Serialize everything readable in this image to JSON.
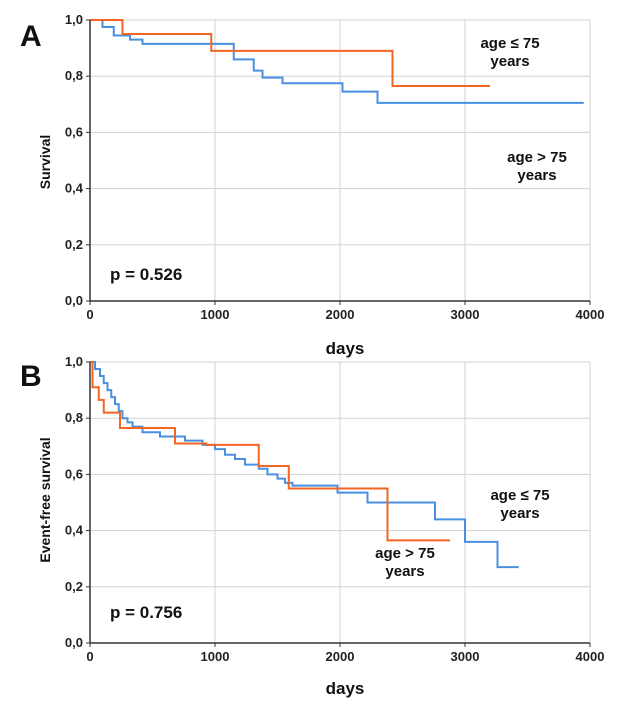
{
  "colors": {
    "series_a": "#4a90e2",
    "series_b": "#f26522",
    "grid": "#d3d3d3",
    "axis": "#333333"
  },
  "chart_data": [
    {
      "type": "line",
      "panel_label": "A",
      "ylabel": "Survival",
      "xlabel": "days",
      "xlim": [
        0,
        4000
      ],
      "ylim": [
        0,
        1.0
      ],
      "x_ticks": [
        0,
        1000,
        2000,
        3000,
        4000
      ],
      "y_ticks": [
        0,
        0.2,
        0.4,
        0.6,
        0.8,
        1.0
      ],
      "x_tick_labels": [
        "0",
        "1000",
        "2000",
        "3000",
        "4000"
      ],
      "y_tick_labels": [
        "0,0",
        "0,2",
        "0,4",
        "0,6",
        "0,8",
        "1,0"
      ],
      "grid": true,
      "pvalue": "p = 0.526",
      "annotations": [
        {
          "line1": "age ≤ 75",
          "line2": "years"
        },
        {
          "line1": "age > 75",
          "line2": "years"
        }
      ],
      "series": [
        {
          "color": "series_a",
          "steps": [
            [
              0,
              1.0
            ],
            [
              100,
              0.975
            ],
            [
              190,
              0.945
            ],
            [
              320,
              0.93
            ],
            [
              420,
              0.915
            ],
            [
              1150,
              0.86
            ],
            [
              1310,
              0.82
            ],
            [
              1380,
              0.795
            ],
            [
              1540,
              0.775
            ],
            [
              2020,
              0.745
            ],
            [
              2300,
              0.705
            ],
            [
              3950,
              0.705
            ]
          ]
        },
        {
          "color": "series_b",
          "steps": [
            [
              0,
              1.0
            ],
            [
              260,
              0.95
            ],
            [
              970,
              0.89
            ],
            [
              2420,
              0.765
            ],
            [
              3200,
              0.765
            ]
          ]
        }
      ]
    },
    {
      "type": "line",
      "panel_label": "B",
      "ylabel": "Event-free survival",
      "xlabel": "days",
      "xlim": [
        0,
        4000
      ],
      "ylim": [
        0,
        1.0
      ],
      "x_ticks": [
        0,
        1000,
        2000,
        3000,
        4000
      ],
      "y_ticks": [
        0,
        0.2,
        0.4,
        0.6,
        0.8,
        1.0
      ],
      "x_tick_labels": [
        "0",
        "1000",
        "2000",
        "3000",
        "4000"
      ],
      "y_tick_labels": [
        "0,0",
        "0,2",
        "0,4",
        "0,6",
        "0,8",
        "1,0"
      ],
      "grid": true,
      "pvalue": "p = 0.756",
      "annotations": [
        {
          "line1": "age ≤ 75",
          "line2": "years"
        },
        {
          "line1": "age > 75",
          "line2": "years"
        }
      ],
      "series": [
        {
          "color": "series_a",
          "steps": [
            [
              0,
              1.0
            ],
            [
              40,
              0.975
            ],
            [
              80,
              0.95
            ],
            [
              110,
              0.925
            ],
            [
              140,
              0.9
            ],
            [
              170,
              0.875
            ],
            [
              200,
              0.85
            ],
            [
              230,
              0.825
            ],
            [
              260,
              0.8
            ],
            [
              300,
              0.785
            ],
            [
              340,
              0.77
            ],
            [
              420,
              0.75
            ],
            [
              560,
              0.735
            ],
            [
              760,
              0.72
            ],
            [
              900,
              0.705
            ],
            [
              1000,
              0.69
            ],
            [
              1080,
              0.67
            ],
            [
              1160,
              0.655
            ],
            [
              1240,
              0.635
            ],
            [
              1350,
              0.62
            ],
            [
              1420,
              0.6
            ],
            [
              1500,
              0.585
            ],
            [
              1560,
              0.57
            ],
            [
              1620,
              0.56
            ],
            [
              1980,
              0.535
            ],
            [
              2220,
              0.5
            ],
            [
              2760,
              0.44
            ],
            [
              3000,
              0.36
            ],
            [
              3260,
              0.27
            ],
            [
              3430,
              0.27
            ]
          ]
        },
        {
          "color": "series_b",
          "steps": [
            [
              0,
              1.0
            ],
            [
              20,
              0.91
            ],
            [
              70,
              0.865
            ],
            [
              110,
              0.82
            ],
            [
              240,
              0.765
            ],
            [
              680,
              0.71
            ],
            [
              930,
              0.705
            ],
            [
              1350,
              0.63
            ],
            [
              1590,
              0.55
            ],
            [
              2380,
              0.365
            ],
            [
              2880,
              0.365
            ]
          ]
        }
      ]
    }
  ]
}
